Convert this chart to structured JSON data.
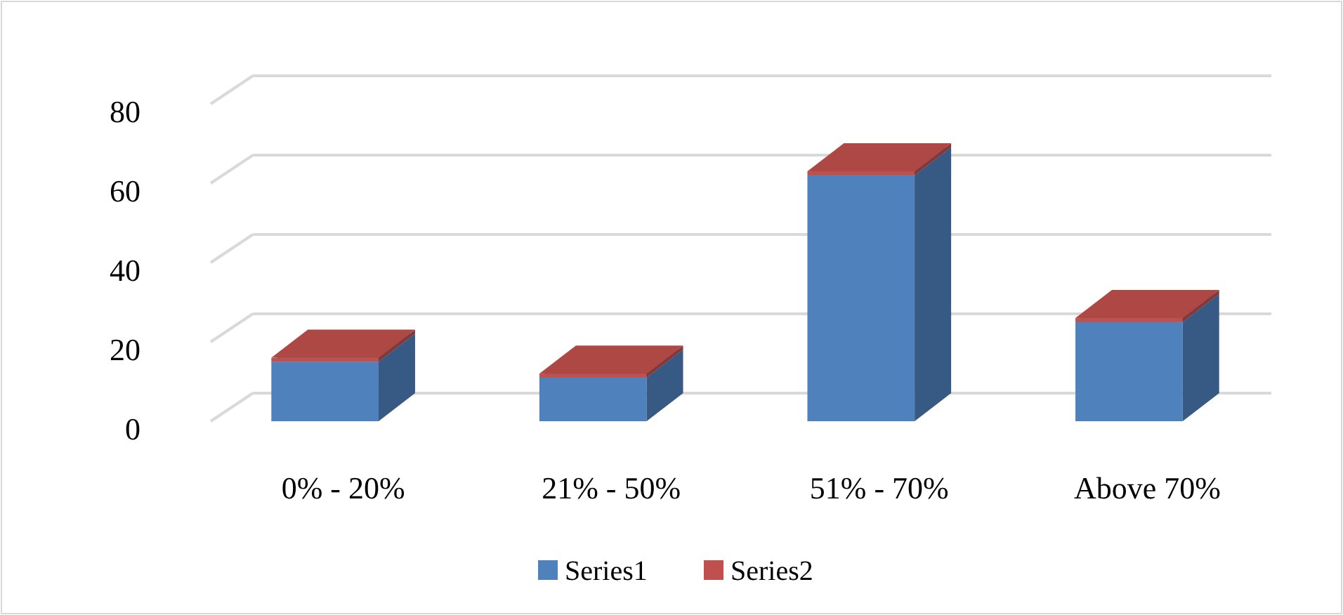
{
  "chart_data": {
    "type": "bar",
    "stacked": true,
    "categories": [
      "0% - 20%",
      "21% - 50%",
      "51% - 70%",
      "Above 70%"
    ],
    "series": [
      {
        "name": "Series1",
        "color": "#4f81bd",
        "values": [
          15,
          11,
          62,
          25
        ]
      },
      {
        "name": "Series2",
        "color": "#c0504d",
        "values": [
          1,
          1,
          1,
          1
        ]
      }
    ],
    "ylim": [
      0,
      80
    ],
    "yticks": [
      0,
      20,
      40,
      60,
      80
    ],
    "grid": "y",
    "legend": "bottom"
  }
}
